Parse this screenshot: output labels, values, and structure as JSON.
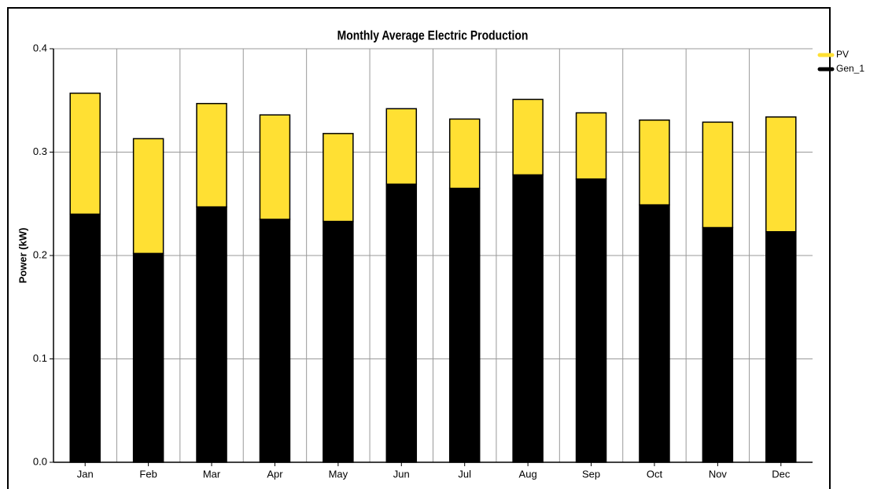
{
  "chart_data": {
    "type": "stacked_bar",
    "title": "Monthly Average Electric Production",
    "y_label": "Power (kW)",
    "categories": [
      "Jan",
      "Feb",
      "Mar",
      "Apr",
      "May",
      "Jun",
      "Jul",
      "Aug",
      "Sep",
      "Oct",
      "Nov",
      "Dec"
    ],
    "series": [
      {
        "name": "PV",
        "color": "#ffe033",
        "values": [
          0.117,
          0.111,
          0.1,
          0.101,
          0.085,
          0.073,
          0.067,
          0.073,
          0.064,
          0.082,
          0.102,
          0.111
        ]
      },
      {
        "name": "Gen_1",
        "color": "#000000",
        "values": [
          0.24,
          0.202,
          0.247,
          0.235,
          0.233,
          0.269,
          0.265,
          0.278,
          0.274,
          0.249,
          0.227,
          0.223
        ]
      }
    ],
    "ylim": [
      0,
      0.4
    ],
    "yticks": [
      {
        "value": 0,
        "label": "0.0"
      },
      0.1,
      0.2,
      0.3,
      0.4
    ],
    "grid": true,
    "legend": "right"
  }
}
